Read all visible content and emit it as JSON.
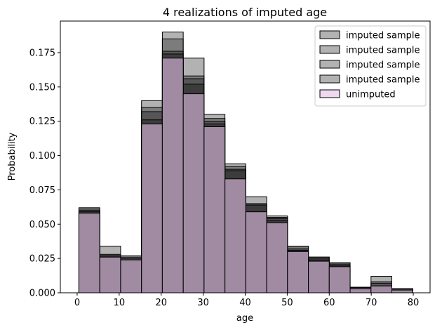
{
  "chart_data": {
    "type": "bar",
    "title": "4 realizations of imputed age",
    "xlabel": "age",
    "ylabel": "Probability",
    "xlim": [
      -4,
      84
    ],
    "ylim": [
      0,
      0.198
    ],
    "xticks": [
      0,
      10,
      20,
      30,
      40,
      50,
      60,
      70,
      80
    ],
    "yticks": [
      0.0,
      0.025,
      0.05,
      0.075,
      0.1,
      0.125,
      0.15,
      0.175
    ],
    "ytick_labels": [
      "0.000",
      "0.025",
      "0.050",
      "0.075",
      "0.100",
      "0.125",
      "0.150",
      "0.175"
    ],
    "bin_edges": [
      0.42,
      5.38,
      10.35,
      15.32,
      20.28,
      25.25,
      30.21,
      35.18,
      40.14,
      45.11,
      50.07,
      55.04,
      60.0,
      64.97,
      69.94,
      74.9,
      79.87
    ],
    "grid": false,
    "legend_position": "top-right",
    "series": [
      {
        "name": "imputed sample",
        "color": "#000000",
        "alpha": 0.3,
        "values": [
          0.062,
          0.034,
          0.027,
          0.14,
          0.19,
          0.171,
          0.13,
          0.094,
          0.07,
          0.056,
          0.034,
          0.026,
          0.022,
          0.004,
          0.012,
          0.003
        ]
      },
      {
        "name": "imputed sample",
        "color": "#000000",
        "alpha": 0.3,
        "values": [
          0.061,
          0.028,
          0.026,
          0.135,
          0.185,
          0.158,
          0.127,
          0.092,
          0.064,
          0.055,
          0.034,
          0.026,
          0.021,
          0.004,
          0.008,
          0.003
        ]
      },
      {
        "name": "imputed sample",
        "color": "#000000",
        "alpha": 0.3,
        "values": [
          0.06,
          0.027,
          0.025,
          0.132,
          0.176,
          0.156,
          0.125,
          0.09,
          0.065,
          0.054,
          0.032,
          0.025,
          0.021,
          0.004,
          0.007,
          0.003
        ]
      },
      {
        "name": "imputed sample",
        "color": "#000000",
        "alpha": 0.3,
        "values": [
          0.059,
          0.027,
          0.024,
          0.126,
          0.174,
          0.152,
          0.123,
          0.089,
          0.064,
          0.053,
          0.031,
          0.024,
          0.02,
          0.004,
          0.005,
          0.002
        ]
      },
      {
        "name": "unimputed",
        "color": "#e5c0e8",
        "alpha": 0.6,
        "values": [
          0.058,
          0.026,
          0.024,
          0.123,
          0.171,
          0.145,
          0.121,
          0.083,
          0.059,
          0.051,
          0.03,
          0.023,
          0.019,
          0.003,
          0.005,
          0.002
        ]
      }
    ]
  }
}
